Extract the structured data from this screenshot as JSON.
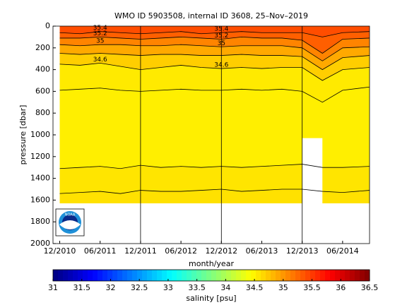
{
  "chart_data": {
    "type": "contour",
    "title": "WMO ID 5903508, internal ID 3608, 25–Nov–2019",
    "x_label": "month/year",
    "y_label": "pressure [dbar]",
    "colorbar_label": "salinity [psu]",
    "x": [
      "12/2010",
      "03/2011",
      "06/2011",
      "09/2011",
      "12/2011",
      "03/2012",
      "06/2012",
      "09/2012",
      "12/2012",
      "03/2013",
      "06/2013",
      "09/2013",
      "12/2013",
      "03/2014",
      "06/2014",
      "10/2014"
    ],
    "xlim": [
      "11/2010",
      "10/2014"
    ],
    "xticks": [
      "12/2010",
      "06/2011",
      "12/2011",
      "06/2012",
      "12/2012",
      "06/2013",
      "12/2013",
      "06/2014"
    ],
    "vlines": [
      "12/2011",
      "12/2012",
      "12/2013"
    ],
    "ylim": [
      0,
      2000
    ],
    "yticks": [
      0,
      200,
      400,
      600,
      800,
      1000,
      1200,
      1400,
      1600,
      1800,
      2000
    ],
    "y_reversed": true,
    "max_pressure": 1630,
    "gap": {
      "x": [
        "12/2013",
        "03/2014"
      ],
      "from": 1030
    },
    "contours": [
      {
        "level": 35.4,
        "label": "35.4",
        "labeled": true,
        "values": [
          60,
          70,
          50,
          60,
          70,
          60,
          50,
          70,
          60,
          50,
          60,
          60,
          60,
          100,
          60,
          50
        ]
      },
      {
        "level": 35.2,
        "label": "35.2",
        "labeled": true,
        "values": [
          110,
          110,
          100,
          110,
          120,
          110,
          100,
          110,
          120,
          100,
          110,
          110,
          130,
          250,
          120,
          110
        ]
      },
      {
        "level": 35,
        "label": "35",
        "labeled": true,
        "values": [
          170,
          180,
          170,
          170,
          180,
          180,
          170,
          180,
          190,
          180,
          180,
          180,
          200,
          320,
          200,
          190
        ]
      },
      {
        "level": 34.8,
        "label": "34.8",
        "labeled": false,
        "values": [
          250,
          260,
          250,
          260,
          270,
          260,
          260,
          270,
          270,
          260,
          270,
          270,
          280,
          400,
          290,
          270
        ]
      },
      {
        "level": 34.6,
        "label": "34.6",
        "labeled": true,
        "values": [
          350,
          360,
          340,
          370,
          400,
          380,
          360,
          380,
          390,
          380,
          390,
          380,
          380,
          500,
          400,
          380
        ]
      },
      {
        "level": 34.5,
        "label": "34.5",
        "labeled": false,
        "values": [
          590,
          580,
          570,
          590,
          600,
          590,
          580,
          590,
          590,
          580,
          590,
          580,
          600,
          700,
          590,
          560
        ]
      },
      {
        "level": 34.55,
        "label": "34.55",
        "labeled": false,
        "values": [
          1310,
          1300,
          1290,
          1310,
          1280,
          1300,
          1290,
          1300,
          1290,
          1300,
          1290,
          1280,
          1270,
          1300,
          1300,
          1290
        ]
      },
      {
        "level": 34.6,
        "label": "34.6",
        "labeled": false,
        "values": [
          1540,
          1530,
          1520,
          1540,
          1510,
          1520,
          1520,
          1510,
          1500,
          1520,
          1510,
          1500,
          1500,
          1520,
          1530,
          1510
        ]
      }
    ],
    "clim": [
      31,
      36.5
    ],
    "cticks": [
      31,
      31.5,
      32,
      32.5,
      33,
      33.5,
      34,
      34.5,
      35,
      35.5,
      36,
      36.5
    ]
  }
}
